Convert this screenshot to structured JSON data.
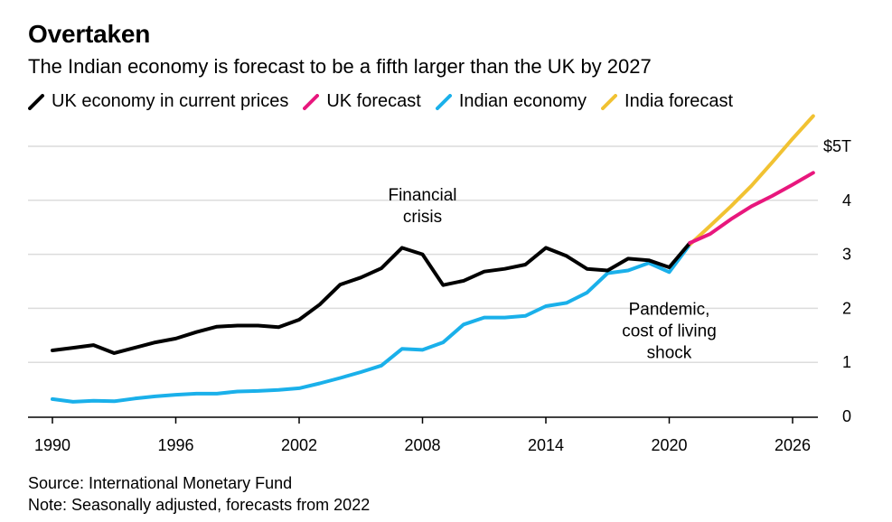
{
  "title": "Overtaken",
  "subtitle": "The Indian economy is forecast to be a fifth larger than the UK by 2027",
  "legend": [
    {
      "label": "UK economy in current prices",
      "color": "#000000"
    },
    {
      "label": "UK forecast",
      "color": "#e8177d"
    },
    {
      "label": "Indian economy",
      "color": "#1ab0ea"
    },
    {
      "label": "India forecast",
      "color": "#f1c232"
    }
  ],
  "source": "Source: International Monetary Fund",
  "note": "Note: Seasonally adjusted, forecasts from 2022",
  "chart_data": {
    "type": "line",
    "xlim": [
      1989,
      2028
    ],
    "ylim": [
      0,
      5.1
    ],
    "x_ticks": [
      {
        "value": 1990,
        "label": "1990"
      },
      {
        "value": 1996,
        "label": "1996"
      },
      {
        "value": 2002,
        "label": "2002"
      },
      {
        "value": 2008,
        "label": "2008"
      },
      {
        "value": 2014,
        "label": "2014"
      },
      {
        "value": 2020,
        "label": "2020"
      },
      {
        "value": 2026,
        "label": "2026"
      }
    ],
    "y_ticks": [
      {
        "value": 0,
        "label": "0"
      },
      {
        "value": 1,
        "label": "1"
      },
      {
        "value": 2,
        "label": "2"
      },
      {
        "value": 3,
        "label": "3"
      },
      {
        "value": 4,
        "label": "4"
      },
      {
        "value": 5,
        "label": "$5T"
      }
    ],
    "grid": true,
    "series": [
      {
        "name": "UK economy in current prices",
        "color": "#000000",
        "x": [
          1990,
          1991,
          1992,
          1993,
          1994,
          1995,
          1996,
          1997,
          1998,
          1999,
          2000,
          2001,
          2002,
          2003,
          2004,
          2005,
          2006,
          2007,
          2008,
          2009,
          2010,
          2011,
          2012,
          2013,
          2014,
          2015,
          2016,
          2017,
          2018,
          2019,
          2020,
          2021
        ],
        "y": [
          1.22,
          1.27,
          1.32,
          1.17,
          1.27,
          1.37,
          1.44,
          1.56,
          1.66,
          1.68,
          1.68,
          1.65,
          1.79,
          2.07,
          2.44,
          2.57,
          2.74,
          3.12,
          3.0,
          2.43,
          2.51,
          2.68,
          2.73,
          2.81,
          3.12,
          2.97,
          2.73,
          2.7,
          2.92,
          2.89,
          2.76,
          3.21
        ]
      },
      {
        "name": "UK forecast",
        "color": "#e8177d",
        "x": [
          2021,
          2022,
          2023,
          2024,
          2025,
          2026,
          2027
        ],
        "y": [
          3.21,
          3.38,
          3.65,
          3.89,
          4.08,
          4.29,
          4.51
        ]
      },
      {
        "name": "Indian economy",
        "color": "#1ab0ea",
        "x": [
          1990,
          1991,
          1992,
          1993,
          1994,
          1995,
          1996,
          1997,
          1998,
          1999,
          2000,
          2001,
          2002,
          2003,
          2004,
          2005,
          2006,
          2007,
          2008,
          2009,
          2010,
          2011,
          2012,
          2013,
          2014,
          2015,
          2016,
          2017,
          2018,
          2019,
          2020,
          2021
        ],
        "y": [
          0.32,
          0.27,
          0.29,
          0.28,
          0.33,
          0.37,
          0.4,
          0.42,
          0.42,
          0.46,
          0.47,
          0.49,
          0.52,
          0.61,
          0.71,
          0.82,
          0.94,
          1.25,
          1.23,
          1.37,
          1.7,
          1.83,
          1.83,
          1.86,
          2.04,
          2.1,
          2.29,
          2.65,
          2.7,
          2.84,
          2.67,
          3.18
        ]
      },
      {
        "name": "India forecast",
        "color": "#f1c232",
        "x": [
          2021,
          2022,
          2023,
          2024,
          2025,
          2026,
          2027
        ],
        "y": [
          3.18,
          3.53,
          3.89,
          4.27,
          4.7,
          5.14,
          5.56
        ]
      }
    ],
    "annotations": [
      {
        "lines": [
          "Financial",
          "crisis"
        ],
        "x": 2008,
        "y": 4.0
      },
      {
        "lines": [
          "Pandemic,",
          "cost of living",
          "shock"
        ],
        "x": 2020,
        "y": 1.88
      }
    ]
  }
}
